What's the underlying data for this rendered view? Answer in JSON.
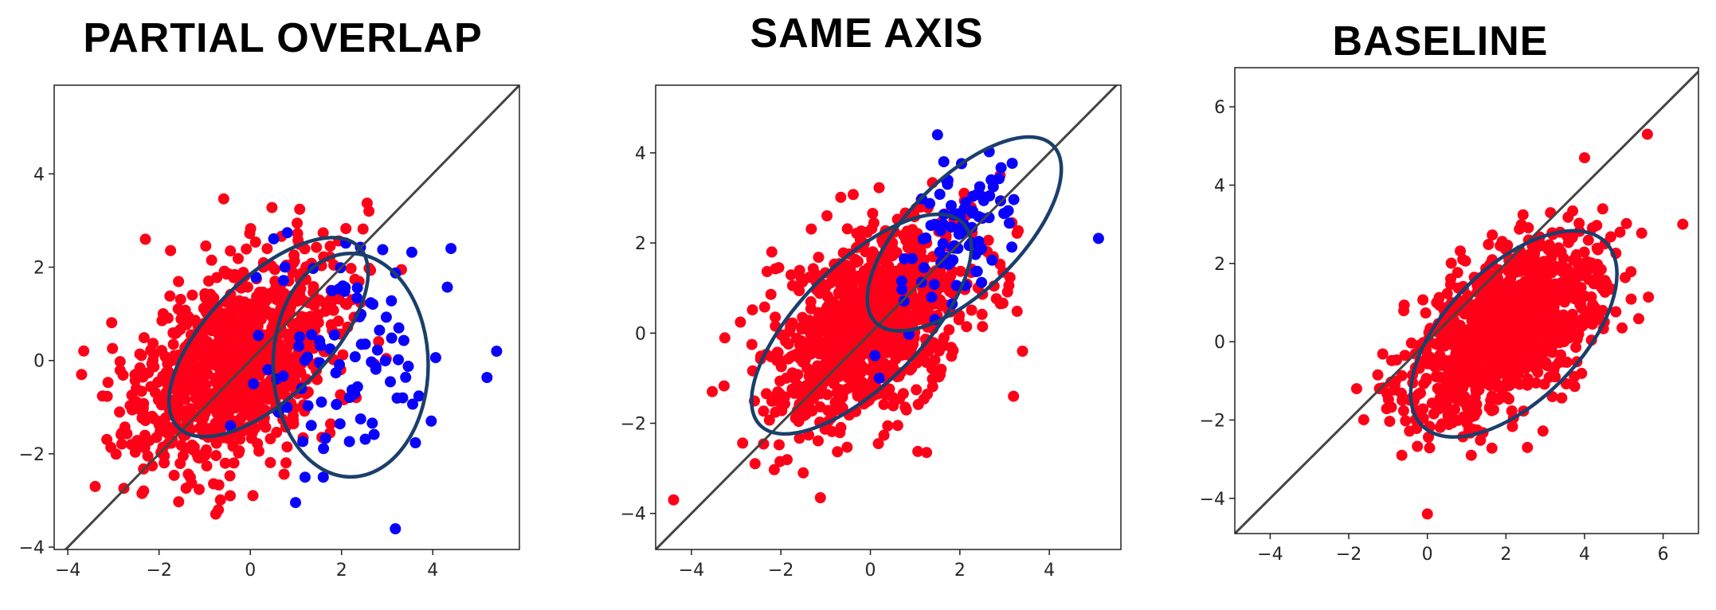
{
  "colors": {
    "group_a": "#ff0018",
    "group_b": "#0a00ff",
    "diagonal": "#444444",
    "ellipse": "#1b3f6b"
  },
  "chart_data": [
    {
      "type": "scatter",
      "title": "PARTIAL OVERLAP",
      "xlim": [
        -4.3,
        5.9
      ],
      "ylim": [
        -4.05,
        5.9
      ],
      "xticks": [
        -4,
        -2,
        0,
        2,
        4
      ],
      "yticks": [
        -4,
        -2,
        0,
        2,
        4
      ],
      "diagonal": true,
      "series": [
        {
          "name": "red",
          "color": "#ff0018",
          "n": 1000,
          "mean": [
            -0.3,
            0.0
          ],
          "cov": [
            [
              1.2,
              0.55
            ],
            [
              0.55,
              1.2
            ]
          ],
          "extra_points": [
            [
              -3.4,
              -2.7
            ],
            [
              -3.7,
              -0.3
            ],
            [
              -2.3,
              2.6
            ],
            [
              -0.7,
              -3.2
            ],
            [
              2.6,
              3.2
            ]
          ]
        },
        {
          "name": "blue",
          "color": "#0a00ff",
          "n": 90,
          "mean": [
            2.1,
            0.1
          ],
          "cov": [
            [
              1.0,
              0.0
            ],
            [
              0.0,
              1.5
            ]
          ],
          "extra_points": [
            [
              5.4,
              0.2
            ],
            [
              4.4,
              2.4
            ],
            [
              1.2,
              -2.5
            ],
            [
              1.6,
              -2.5
            ]
          ]
        }
      ],
      "ellipses": [
        {
          "center": [
            0.4,
            0.5
          ],
          "semi_axes": [
            2.8,
            1.3
          ],
          "angle_deg": 45
        },
        {
          "center": [
            2.2,
            -0.1
          ],
          "semi_axes": [
            1.7,
            2.45
          ],
          "angle_deg": 0
        }
      ]
    },
    {
      "type": "scatter",
      "title": "SAME AXIS",
      "xlim": [
        -4.8,
        5.6
      ],
      "ylim": [
        -4.8,
        5.5
      ],
      "xticks": [
        -4,
        -2,
        0,
        2,
        4
      ],
      "yticks": [
        -4,
        -2,
        0,
        2,
        4
      ],
      "diagonal": true,
      "series": [
        {
          "name": "red",
          "color": "#ff0018",
          "n": 1000,
          "mean": [
            0.0,
            0.2
          ],
          "cov": [
            [
              1.2,
              0.55
            ],
            [
              0.55,
              1.2
            ]
          ],
          "extra_points": [
            [
              -4.4,
              -3.7
            ],
            [
              -1.5,
              -3.1
            ],
            [
              3.4,
              -0.4
            ],
            [
              3.2,
              -1.4
            ],
            [
              2.9,
              3.5
            ]
          ]
        },
        {
          "name": "blue",
          "color": "#0a00ff",
          "n": 90,
          "mean": [
            2.1,
            2.2
          ],
          "cov": [
            [
              0.6,
              0.35
            ],
            [
              0.35,
              0.8
            ]
          ],
          "extra_points": [
            [
              5.1,
              2.1
            ],
            [
              1.5,
              4.4
            ],
            [
              0.2,
              -1.0
            ],
            [
              0.1,
              -0.5
            ]
          ]
        }
      ],
      "ellipses": [
        {
          "center": [
            -0.2,
            0.2
          ],
          "semi_axes": [
            3.2,
            1.35
          ],
          "angle_deg": 45
        },
        {
          "center": [
            2.1,
            2.2
          ],
          "semi_axes": [
            2.8,
            1.25
          ],
          "angle_deg": 45
        }
      ]
    },
    {
      "type": "scatter",
      "title": "BASELINE",
      "xlim": [
        -4.9,
        6.9
      ],
      "ylim": [
        -4.9,
        7.0
      ],
      "xticks": [
        -4,
        -2,
        0,
        2,
        4,
        6
      ],
      "yticks": [
        -4,
        -2,
        0,
        2,
        4,
        6
      ],
      "diagonal": true,
      "series": [
        {
          "name": "red",
          "color": "#ff0018",
          "n": 1100,
          "mean": [
            2.0,
            0.3
          ],
          "cov": [
            [
              1.4,
              0.7
            ],
            [
              0.7,
              1.3
            ]
          ],
          "extra_points": [
            [
              0.0,
              -4.4
            ],
            [
              -1.8,
              -1.2
            ],
            [
              6.5,
              3.0
            ],
            [
              5.6,
              5.3
            ],
            [
              4.0,
              4.7
            ]
          ]
        }
      ],
      "ellipses": [
        {
          "center": [
            2.2,
            0.2
          ],
          "semi_axes": [
            3.3,
            1.7
          ],
          "angle_deg": 45
        }
      ]
    }
  ]
}
